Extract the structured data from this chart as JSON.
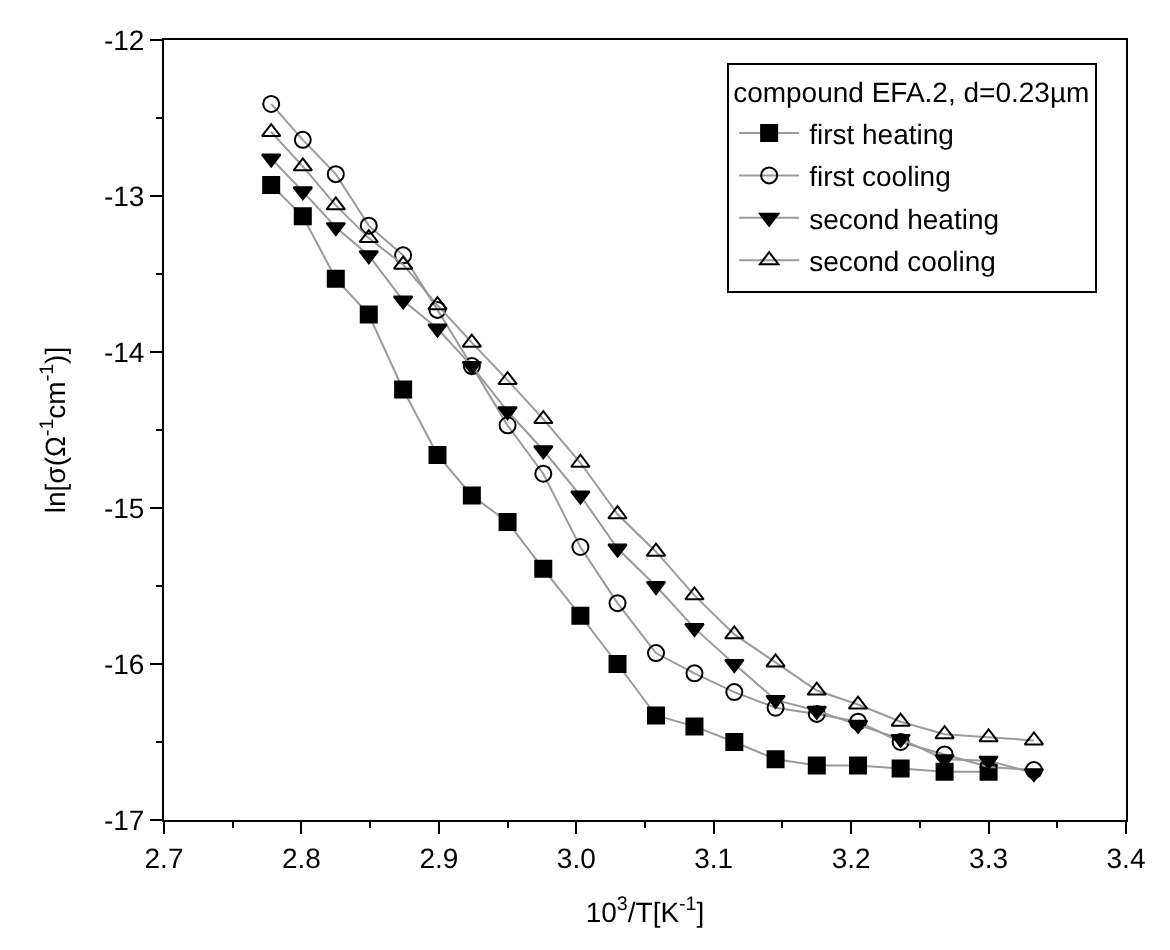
{
  "chart_data": {
    "type": "line",
    "xlabel": "10$^{3}$/T[K$^{-1}$]",
    "ylabel": "ln[σ(Ω$^{-1}$cm$^{-1}$)]",
    "legend_title": "compound EFA.2, d=0.23µm",
    "legend": "top right",
    "x": [
      2.778,
      2.801,
      2.825,
      2.849,
      2.874,
      2.899,
      2.924,
      2.95,
      2.976,
      3.003,
      3.03,
      3.058,
      3.086,
      3.115,
      3.145,
      3.175,
      3.205,
      3.236,
      3.268,
      3.3,
      3.333
    ],
    "xlim": [
      2.7,
      3.4
    ],
    "xticks": [
      {
        "value": 2.7,
        "label": "2.7"
      },
      {
        "value": 2.8,
        "label": "2.8"
      },
      {
        "value": 2.9,
        "label": "2.9"
      },
      {
        "value": 3.0,
        "label": "3.0"
      },
      {
        "value": 3.1,
        "label": "3.1"
      },
      {
        "value": 3.2,
        "label": "3.2"
      },
      {
        "value": 3.3,
        "label": "3.3"
      },
      {
        "value": 3.4,
        "label": "3.4"
      }
    ],
    "ylim": [
      -17,
      -12
    ],
    "yticks": [
      -17,
      -16,
      -15,
      -14,
      -13,
      -12
    ],
    "series": [
      {
        "name": "first heating",
        "color": "#000000",
        "marker": "square",
        "values": [
          -12.93,
          -13.13,
          -13.53,
          -13.76,
          -14.24,
          -14.66,
          -14.92,
          -15.09,
          -15.39,
          -15.69,
          -16.0,
          -16.33,
          -16.4,
          -16.5,
          -16.61,
          -16.65,
          -16.65,
          -16.67,
          -16.69,
          -16.69,
          null
        ]
      },
      {
        "name": "first cooling",
        "color": "#000000",
        "marker": "circle-open",
        "values": [
          -12.41,
          -12.64,
          -12.86,
          -13.19,
          -13.38,
          -13.73,
          -14.09,
          -14.47,
          -14.78,
          -15.25,
          -15.61,
          -15.93,
          -16.06,
          -16.18,
          -16.28,
          -16.32,
          -16.37,
          -16.5,
          -16.58,
          -16.66,
          -16.68
        ]
      },
      {
        "name": "second heating",
        "color": "#000000",
        "marker": "triangle-down",
        "values": [
          -12.76,
          -12.97,
          -13.2,
          -13.38,
          -13.67,
          -13.85,
          -14.09,
          -14.38,
          -14.63,
          -14.92,
          -15.26,
          -15.5,
          -15.77,
          -16.0,
          -16.23,
          -16.3,
          -16.39,
          -16.48,
          -16.61,
          -16.62,
          -16.7
        ]
      },
      {
        "name": "second cooling",
        "color": "#000000",
        "marker": "triangle-up-open",
        "values": [
          -12.59,
          -12.81,
          -13.06,
          -13.27,
          -13.44,
          -13.7,
          -13.94,
          -14.18,
          -14.43,
          -14.71,
          -15.04,
          -15.28,
          -15.56,
          -15.81,
          -15.99,
          -16.17,
          -16.26,
          -16.37,
          -16.45,
          -16.47,
          -16.49
        ]
      }
    ]
  }
}
